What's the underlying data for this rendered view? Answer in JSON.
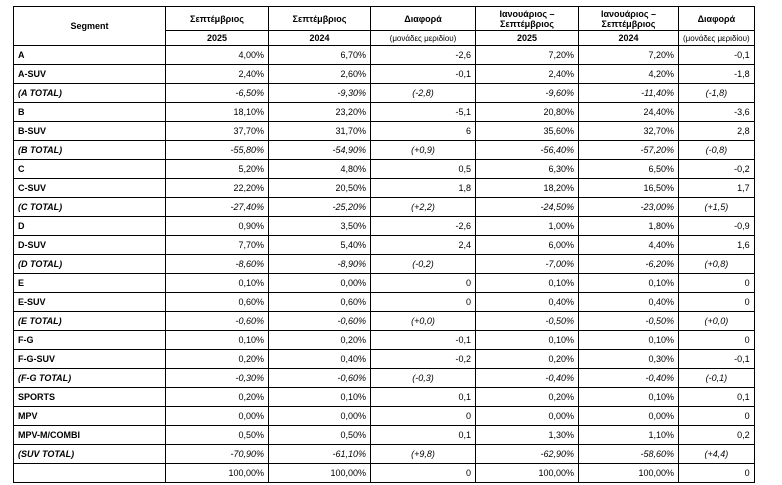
{
  "table": {
    "header": {
      "row1": [
        "Segment",
        "Σεπτέμβριος",
        "Σεπτέμβριος",
        "Διαφορά",
        "Ιανουάριος – Σεπτέμβριος",
        "Ιανουάριος – Σεπτέμβριος",
        "Διαφορά"
      ],
      "row2": [
        "2025",
        "2024",
        "(μονάδες μεριδίου)",
        "2025",
        "2024",
        "(μονάδες μεριδίου)"
      ]
    },
    "rows": [
      [
        "A",
        "4,00%",
        "6,70%",
        "-2,6",
        "7,20%",
        "7,20%",
        "-0,1"
      ],
      [
        "A-SUV",
        "2,40%",
        "2,60%",
        "-0,1",
        "2,40%",
        "4,20%",
        "-1,8"
      ],
      [
        "(A TOTAL)",
        "-6,50%",
        "-9,30%",
        "(-2,8)",
        "-9,60%",
        "-11,40%",
        "(-1,8)"
      ],
      [
        "B",
        "18,10%",
        "23,20%",
        "-5,1",
        "20,80%",
        "24,40%",
        "-3,6"
      ],
      [
        "B-SUV",
        "37,70%",
        "31,70%",
        "6",
        "35,60%",
        "32,70%",
        "2,8"
      ],
      [
        "(B TOTAL)",
        "-55,80%",
        "-54,90%",
        "(+0,9)",
        "-56,40%",
        "-57,20%",
        "(-0,8)"
      ],
      [
        "C",
        "5,20%",
        "4,80%",
        "0,5",
        "6,30%",
        "6,50%",
        "-0,2"
      ],
      [
        "C-SUV",
        "22,20%",
        "20,50%",
        "1,8",
        "18,20%",
        "16,50%",
        "1,7"
      ],
      [
        "(C TOTAL)",
        "-27,40%",
        "-25,20%",
        "(+2,2)",
        "-24,50%",
        "-23,00%",
        "(+1,5)"
      ],
      [
        "D",
        "0,90%",
        "3,50%",
        "-2,6",
        "1,00%",
        "1,80%",
        "-0,9"
      ],
      [
        "D-SUV",
        "7,70%",
        "5,40%",
        "2,4",
        "6,00%",
        "4,40%",
        "1,6"
      ],
      [
        "(D TOTAL)",
        "-8,60%",
        "-8,90%",
        "(-0,2)",
        "-7,00%",
        "-6,20%",
        "(+0,8)"
      ],
      [
        "E",
        "0,10%",
        "0,00%",
        "0",
        "0,10%",
        "0,10%",
        "0"
      ],
      [
        "E-SUV",
        "0,60%",
        "0,60%",
        "0",
        "0,40%",
        "0,40%",
        "0"
      ],
      [
        "(E TOTAL)",
        "-0,60%",
        "-0,60%",
        "(+0,0)",
        "-0,50%",
        "-0,50%",
        "(+0,0)"
      ],
      [
        "F-G",
        "0,10%",
        "0,20%",
        "-0,1",
        "0,10%",
        "0,10%",
        "0"
      ],
      [
        "F-G-SUV",
        "0,20%",
        "0,40%",
        "-0,2",
        "0,20%",
        "0,30%",
        "-0,1"
      ],
      [
        "(F-G TOTAL)",
        "-0,30%",
        "-0,60%",
        "(-0,3)",
        "-0,40%",
        "-0,40%",
        "(-0,1)"
      ],
      [
        "SPORTS",
        "0,20%",
        "0,10%",
        "0,1",
        "0,20%",
        "0,10%",
        "0,1"
      ],
      [
        "MPV",
        "0,00%",
        "0,00%",
        "0",
        "0,00%",
        "0,00%",
        "0"
      ],
      [
        "MPV-M/COMBI",
        "0,50%",
        "0,50%",
        "0,1",
        "1,30%",
        "1,10%",
        "0,2"
      ],
      [
        "(SUV TOTAL)",
        "-70,90%",
        "-61,10%",
        "(+9,8)",
        "-62,90%",
        "-58,60%",
        "(+4,4)"
      ],
      [
        null,
        "100,00%",
        "100,00%",
        "0",
        "100,00%",
        "100,00%",
        "0"
      ]
    ]
  }
}
